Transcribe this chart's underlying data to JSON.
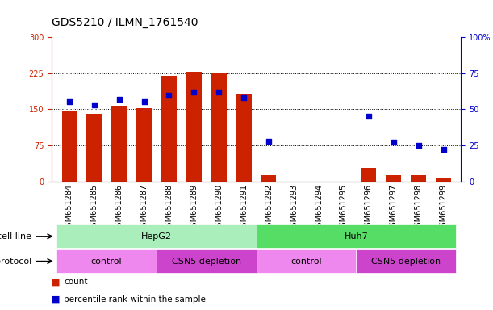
{
  "title": "GDS5210 / ILMN_1761540",
  "samples": [
    "GSM651284",
    "GSM651285",
    "GSM651286",
    "GSM651287",
    "GSM651288",
    "GSM651289",
    "GSM651290",
    "GSM651291",
    "GSM651292",
    "GSM651293",
    "GSM651294",
    "GSM651295",
    "GSM651296",
    "GSM651297",
    "GSM651298",
    "GSM651299"
  ],
  "counts": [
    147,
    140,
    158,
    152,
    220,
    228,
    227,
    183,
    13,
    0,
    0,
    0,
    28,
    13,
    12,
    6
  ],
  "percentiles": [
    55,
    53,
    57,
    55,
    60,
    62,
    62,
    58,
    28,
    null,
    null,
    null,
    45,
    27,
    25,
    22
  ],
  "ylim_left": [
    0,
    300
  ],
  "ylim_right": [
    0,
    100
  ],
  "yticks_left": [
    0,
    75,
    150,
    225,
    300
  ],
  "yticks_right": [
    0,
    25,
    50,
    75,
    100
  ],
  "bar_color": "#cc2200",
  "dot_color": "#0000cc",
  "bg_color": "#ffffff",
  "cell_line_hepg2_color": "#aaeebb",
  "cell_line_huh7_color": "#55dd66",
  "protocol_light_color": "#ee88ee",
  "protocol_dark_color": "#cc44cc",
  "cell_line_label": "cell line",
  "protocol_label": "protocol",
  "cell_lines": [
    {
      "label": "HepG2",
      "start": 0,
      "end": 8
    },
    {
      "label": "Huh7",
      "start": 8,
      "end": 16
    }
  ],
  "protocols": [
    {
      "label": "control",
      "start": 0,
      "end": 4,
      "light": true
    },
    {
      "label": "CSN5 depletion",
      "start": 4,
      "end": 8,
      "light": false
    },
    {
      "label": "control",
      "start": 8,
      "end": 12,
      "light": true
    },
    {
      "label": "CSN5 depletion",
      "start": 12,
      "end": 16,
      "light": false
    }
  ],
  "legend_count_label": "count",
  "legend_pct_label": "percentile rank within the sample",
  "title_fontsize": 10,
  "tick_fontsize": 7,
  "label_fontsize": 8,
  "annotation_fontsize": 8
}
